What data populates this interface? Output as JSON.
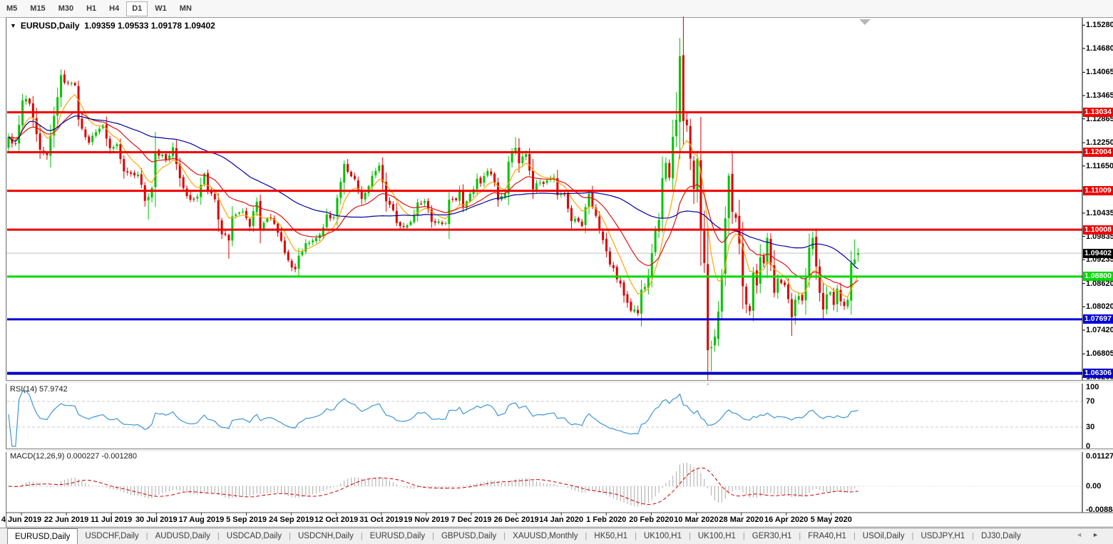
{
  "toolbar": {
    "timeframes": [
      "M5",
      "M15",
      "M30",
      "H1",
      "H4",
      "D1",
      "W1",
      "MN"
    ],
    "active_timeframe": "D1"
  },
  "chart_data": {
    "type": "candlestick",
    "title": {
      "symbol": "EURUSD,Daily",
      "ohlc_text": "1.09359 1.09533 1.09178 1.09402"
    },
    "last_candle": {
      "open": 1.09359,
      "high": 1.09533,
      "low": 1.09178,
      "close": 1.09402
    },
    "price_axis_labels": [
      "1.15280",
      "1.14680",
      "1.14065",
      "1.13465",
      "1.12865",
      "1.12250",
      "1.11650",
      "1.10435",
      "1.09835",
      "1.09235",
      "1.08620",
      "1.08020",
      "1.07420",
      "1.06805",
      "1.06205"
    ],
    "date_labels": [
      "4 Jun 2019",
      "22 Jun 2019",
      "11 Jul 2019",
      "30 Jul 2019",
      "17 Aug 2019",
      "5 Sep 2019",
      "24 Sep 2019",
      "12 Oct 2019",
      "31 Oct 2019",
      "19 Nov 2019",
      "7 Dec 2019",
      "26 Dec 2019",
      "14 Jan 2020",
      "1 Feb 2020",
      "20 Feb 2020",
      "10 Mar 2020",
      "28 Mar 2020",
      "16 Apr 2020",
      "5 May 2020"
    ],
    "horizontal_lines": [
      {
        "label": "1.13034",
        "price": 1.13034,
        "color": "#ee0000",
        "thickness": 3
      },
      {
        "label": "1.12004",
        "price": 1.12004,
        "color": "#ee0000",
        "thickness": 3
      },
      {
        "label": "1.11009",
        "price": 1.11009,
        "color": "#ee0000",
        "thickness": 3
      },
      {
        "label": "1.10008",
        "price": 1.10008,
        "color": "#ee0000",
        "thickness": 3
      },
      {
        "label": "1.08800",
        "price": 1.088,
        "color": "#00d900",
        "thickness": 3
      },
      {
        "label": "1.07697",
        "price": 1.07697,
        "color": "#0000d9",
        "thickness": 3
      },
      {
        "label": "1.06306",
        "price": 1.06306,
        "color": "#0000c8",
        "thickness": 4
      }
    ],
    "current_price": {
      "label": "1.09402",
      "value": 1.09402,
      "line_color": "#c0c0c0",
      "tag_bg": "#000000"
    },
    "moving_averages": [
      {
        "name": "ma-fast",
        "color": "#ffa500",
        "type": "ema",
        "period": 8
      },
      {
        "name": "ma-mid",
        "color": "#dc1414",
        "type": "ema",
        "period": 21
      },
      {
        "name": "ma-slow",
        "color": "#0000a0",
        "type": "sma",
        "period": 50
      }
    ],
    "colors": {
      "bull": "#00c400",
      "bear": "#dd0000",
      "rsi_line": "#3e96d2",
      "macd_hist": "#aaaaaa",
      "macd_signal": "#cc0000",
      "level_dash": "#c8c8c8"
    },
    "rsi": {
      "label": "RSI(14) 57.9742",
      "period": 14,
      "value": 57.9742,
      "levels": [
        70,
        30
      ],
      "axis_labels": [
        "100",
        "70",
        "30",
        "0"
      ]
    },
    "macd": {
      "label": "MACD(12,26,9) 0.000227 -0.001280",
      "macd_value": 0.000227,
      "signal_value": -0.00128,
      "axis_labels": [
        "0.011277",
        "0.00",
        "-0.00884"
      ]
    },
    "series": {
      "count": 244,
      "close_anchors": [
        [
          0,
          1.124
        ],
        [
          2,
          1.1222
        ],
        [
          4,
          1.1334
        ],
        [
          6,
          1.1326
        ],
        [
          9,
          1.1207
        ],
        [
          11,
          1.1193
        ],
        [
          13,
          1.1294
        ],
        [
          15,
          1.1399
        ],
        [
          16,
          1.138
        ],
        [
          19,
          1.1373
        ],
        [
          20,
          1.1285
        ],
        [
          23,
          1.1225
        ],
        [
          25,
          1.1252
        ],
        [
          27,
          1.127
        ],
        [
          29,
          1.1211
        ],
        [
          31,
          1.1221
        ],
        [
          33,
          1.1151
        ],
        [
          35,
          1.1145
        ],
        [
          37,
          1.1143
        ],
        [
          39,
          1.1075
        ],
        [
          40,
          1.1085
        ],
        [
          41,
          1.1108
        ],
        [
          42,
          1.1203
        ],
        [
          45,
          1.1181
        ],
        [
          47,
          1.1213
        ],
        [
          48,
          1.117
        ],
        [
          50,
          1.1108
        ],
        [
          52,
          1.1078
        ],
        [
          54,
          1.1086
        ],
        [
          56,
          1.1145
        ],
        [
          57,
          1.1101
        ],
        [
          59,
          1.1079
        ],
        [
          61,
          1.0989
        ],
        [
          63,
          1.0973
        ],
        [
          64,
          1.1035
        ],
        [
          67,
          1.1047
        ],
        [
          69,
          1.1009
        ],
        [
          71,
          1.1073
        ],
        [
          72,
          1.1003
        ],
        [
          74,
          1.103
        ],
        [
          76,
          1.1016
        ],
        [
          77,
          1.0993
        ],
        [
          79,
          1.0941
        ],
        [
          80,
          1.0922
        ],
        [
          82,
          1.0899
        ],
        [
          83,
          1.0934
        ],
        [
          85,
          1.0966
        ],
        [
          87,
          1.0973
        ],
        [
          89,
          1.0988
        ],
        [
          91,
          1.104
        ],
        [
          93,
          1.1033
        ],
        [
          95,
          1.1124
        ],
        [
          96,
          1.117
        ],
        [
          97,
          1.115
        ],
        [
          99,
          1.1131
        ],
        [
          101,
          1.108
        ],
        [
          103,
          1.1113
        ],
        [
          105,
          1.1152
        ],
        [
          106,
          1.1166
        ],
        [
          108,
          1.1074
        ],
        [
          110,
          1.1051
        ],
        [
          111,
          1.1018
        ],
        [
          113,
          1.1008
        ],
        [
          115,
          1.1021
        ],
        [
          117,
          1.1071
        ],
        [
          119,
          1.1074
        ],
        [
          121,
          1.1021
        ],
        [
          123,
          1.1022
        ],
        [
          125,
          1.1018
        ],
        [
          126,
          1.1078
        ],
        [
          128,
          1.1077
        ],
        [
          129,
          1.1104
        ],
        [
          130,
          1.106
        ],
        [
          132,
          1.1093
        ],
        [
          134,
          1.1132
        ],
        [
          135,
          1.112
        ],
        [
          137,
          1.1152
        ],
        [
          139,
          1.1122
        ],
        [
          140,
          1.1077
        ],
        [
          142,
          1.1096
        ],
        [
          143,
          1.1176
        ],
        [
          144,
          1.1199
        ],
        [
          145,
          1.1212
        ],
        [
          146,
          1.1172
        ],
        [
          148,
          1.1196
        ],
        [
          150,
          1.1105
        ],
        [
          152,
          1.1122
        ],
        [
          154,
          1.1128
        ],
        [
          156,
          1.1136
        ],
        [
          157,
          1.109
        ],
        [
          159,
          1.1093
        ],
        [
          160,
          1.1055
        ],
        [
          161,
          1.1023
        ],
        [
          163,
          1.1022
        ],
        [
          164,
          1.101
        ],
        [
          166,
          1.1093
        ],
        [
          167,
          1.106
        ],
        [
          169,
          1.0999
        ],
        [
          171,
          1.0945
        ],
        [
          172,
          1.0911
        ],
        [
          174,
          1.0873
        ],
        [
          176,
          1.0831
        ],
        [
          178,
          1.0792
        ],
        [
          180,
          1.0785
        ],
        [
          181,
          1.0846
        ],
        [
          183,
          1.0881
        ],
        [
          185,
          1.0999
        ],
        [
          186,
          1.1026
        ],
        [
          187,
          1.1134
        ],
        [
          188,
          1.1173
        ],
        [
          189,
          1.1135
        ],
        [
          190,
          1.124
        ],
        [
          191,
          1.1284
        ],
        [
          192,
          1.1448
        ],
        [
          193,
          1.1281
        ],
        [
          194,
          1.127
        ],
        [
          195,
          1.1184
        ],
        [
          196,
          1.1106
        ],
        [
          197,
          1.1183
        ],
        [
          198,
          1.0999
        ],
        [
          199,
          1.0915
        ],
        [
          200,
          1.069
        ],
        [
          201,
          1.0698
        ],
        [
          202,
          1.0725
        ],
        [
          203,
          1.079
        ],
        [
          204,
          1.0883
        ],
        [
          205,
          1.103
        ],
        [
          206,
          1.114
        ],
        [
          207,
          1.1047
        ],
        [
          208,
          1.1031
        ],
        [
          209,
          1.0965
        ],
        [
          210,
          1.0855
        ],
        [
          211,
          1.0808
        ],
        [
          212,
          1.0791
        ],
        [
          213,
          1.089
        ],
        [
          214,
          1.0857
        ],
        [
          215,
          1.093
        ],
        [
          216,
          1.0914
        ],
        [
          217,
          1.098
        ],
        [
          218,
          1.0911
        ],
        [
          219,
          1.0838
        ],
        [
          220,
          1.0875
        ],
        [
          221,
          1.0863
        ],
        [
          222,
          1.0858
        ],
        [
          223,
          1.0822
        ],
        [
          224,
          1.0775
        ],
        [
          225,
          1.082
        ],
        [
          226,
          1.083
        ],
        [
          227,
          1.0818
        ],
        [
          228,
          1.0875
        ],
        [
          229,
          1.0955
        ],
        [
          230,
          1.098
        ],
        [
          231,
          1.0906
        ],
        [
          232,
          1.0838
        ],
        [
          233,
          1.0795
        ],
        [
          234,
          1.0834
        ],
        [
          235,
          1.0839
        ],
        [
          236,
          1.0807
        ],
        [
          237,
          1.0849
        ],
        [
          238,
          1.0816
        ],
        [
          239,
          1.0804
        ],
        [
          240,
          1.082
        ],
        [
          241,
          1.0915
        ],
        [
          242,
          1.0924
        ],
        [
          243,
          1.09402
        ]
      ],
      "extremes": [
        [
          11,
          "l",
          1.1181
        ],
        [
          16,
          "h",
          1.1412
        ],
        [
          39,
          "l",
          1.106
        ],
        [
          40,
          "l",
          1.1027
        ],
        [
          63,
          "l",
          1.0926
        ],
        [
          83,
          "l",
          1.0879
        ],
        [
          96,
          "h",
          1.1179
        ],
        [
          145,
          "h",
          1.1239
        ],
        [
          180,
          "l",
          1.0778
        ],
        [
          191,
          "h",
          1.1355
        ],
        [
          192,
          "h",
          1.1495
        ],
        [
          201,
          "l",
          1.0636
        ],
        [
          206,
          "h",
          1.1147
        ],
        [
          224,
          "l",
          1.0727
        ],
        [
          242,
          "h",
          1.0976
        ]
      ]
    }
  },
  "tabs": {
    "active_index": 0,
    "items": [
      "EURUSD,Daily",
      "USDCHF,Daily",
      "AUDUSD,Daily",
      "USDCAD,Daily",
      "USDCNH,Daily",
      "EURUSD,Daily",
      "GBPUSD,Daily",
      "XAUUSD,Monthly",
      "HK50,H1",
      "UK100,H1",
      "UK100,H1",
      "GER30,H1",
      "FRA40,H1",
      "USOil,Daily",
      "USDJPY,H1",
      "DJ30,Daily"
    ],
    "scroll_left_icon": "◄",
    "scroll_right_icon": "►"
  }
}
